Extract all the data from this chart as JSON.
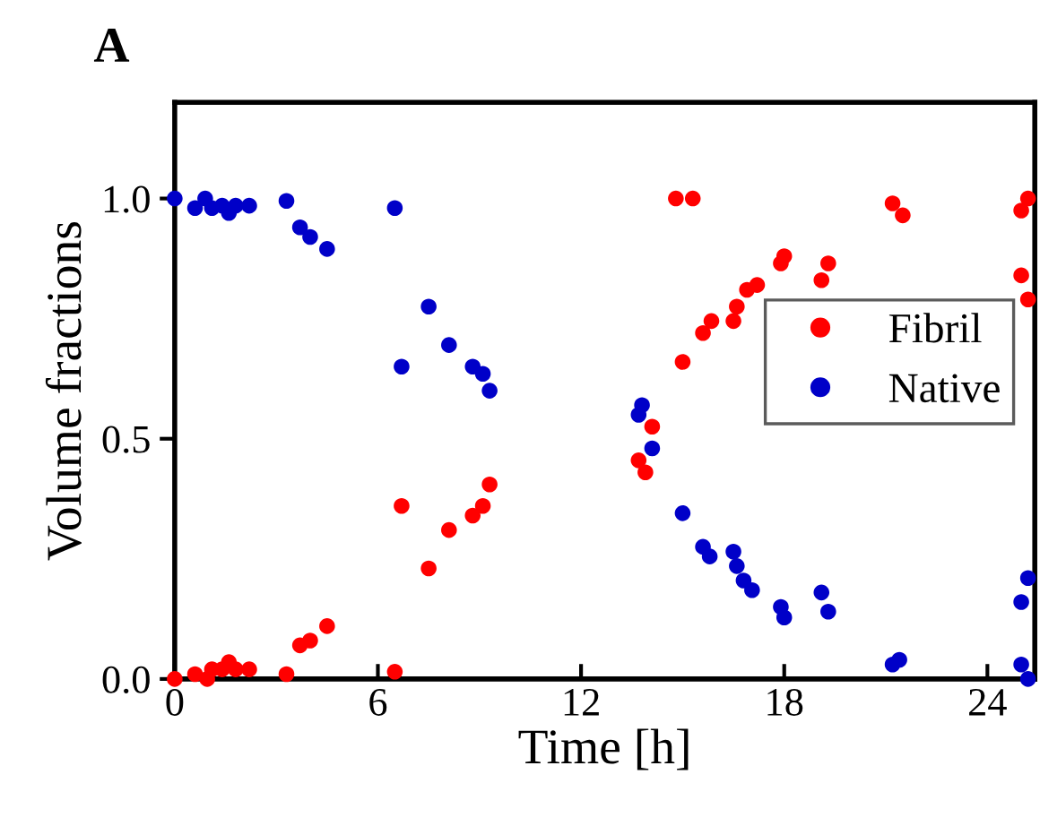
{
  "chart_data": {
    "type": "scatter",
    "title": "A",
    "xlabel": "Time [h]",
    "ylabel": "Volume fractions",
    "xlim": [
      0,
      25.4
    ],
    "ylim": [
      0,
      1.2
    ],
    "xticks": [
      0,
      6,
      12,
      18,
      24
    ],
    "yticks": [
      {
        "value": 0,
        "label": "0.0"
      },
      {
        "value": 0.5,
        "label": "0.5"
      },
      {
        "value": 1,
        "label": "1.0"
      }
    ],
    "grid": false,
    "legend": "right",
    "marker": "circle",
    "series": [
      {
        "name": "Fibril",
        "color": "#ff0000",
        "x": [
          0,
          0.6,
          0.96,
          1.1,
          1.4,
          1.6,
          1.8,
          2.2,
          3.3,
          3.7,
          4.0,
          4.5,
          6.5,
          6.7,
          7.5,
          8.1,
          8.8,
          9.1,
          9.3,
          13.7,
          13.9,
          14.1,
          14.8,
          15.3,
          15.0,
          15.6,
          15.85,
          16.5,
          16.6,
          16.9,
          17.2,
          17.9,
          18.0,
          19.1,
          19.3,
          21.2,
          21.5,
          25.0,
          25.2,
          25.0,
          25.2
        ],
        "values": [
          0,
          0.01,
          0,
          0.02,
          0.02,
          0.035,
          0.02,
          0.02,
          0.01,
          0.07,
          0.08,
          0.11,
          0.015,
          0.36,
          0.23,
          0.31,
          0.34,
          0.36,
          0.405,
          0.455,
          0.43,
          0.525,
          1.0,
          1.0,
          0.66,
          0.72,
          0.745,
          0.745,
          0.775,
          0.81,
          0.82,
          0.865,
          0.88,
          0.83,
          0.865,
          0.99,
          0.965,
          0.975,
          1.0,
          0.84,
          0.79
        ]
      },
      {
        "name": "Native",
        "color": "#0000c8",
        "x": [
          0,
          0.6,
          0.9,
          1.1,
          1.4,
          1.6,
          1.8,
          2.2,
          3.3,
          3.7,
          4.0,
          4.5,
          6.5,
          6.7,
          7.5,
          8.1,
          8.8,
          9.1,
          9.3,
          13.7,
          13.8,
          14.1,
          15.0,
          15.6,
          15.8,
          16.5,
          16.6,
          16.8,
          17.05,
          17.9,
          18.0,
          19.1,
          19.3,
          21.2,
          21.4,
          25.0,
          25.2,
          25.0,
          25.2
        ],
        "values": [
          1.0,
          0.98,
          1.0,
          0.98,
          0.985,
          0.97,
          0.985,
          0.985,
          0.995,
          0.94,
          0.92,
          0.895,
          0.98,
          0.65,
          0.775,
          0.695,
          0.65,
          0.635,
          0.6,
          0.55,
          0.57,
          0.48,
          0.345,
          0.275,
          0.255,
          0.265,
          0.235,
          0.205,
          0.185,
          0.15,
          0.128,
          0.18,
          0.14,
          0.03,
          0.04,
          0.16,
          0.21,
          0.03,
          0.0
        ]
      }
    ]
  }
}
